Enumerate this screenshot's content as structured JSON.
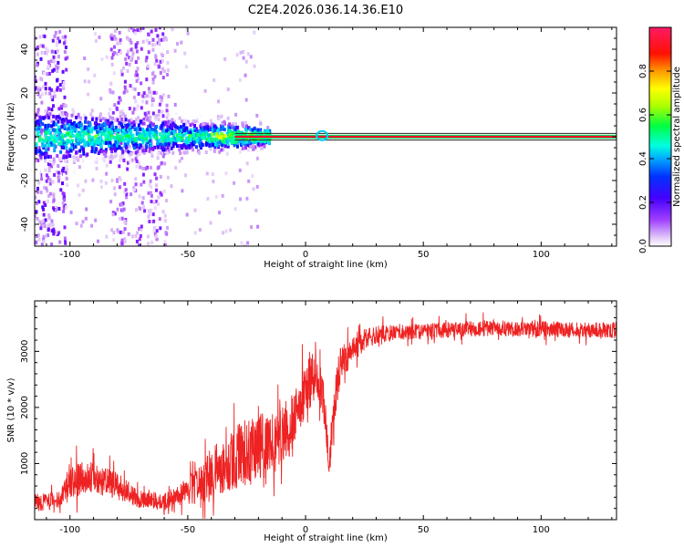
{
  "title": "C2E4.2026.036.14.36.E10",
  "chart_data": [
    {
      "type": "heatmap",
      "xlabel": "Height of straight line (km)",
      "ylabel": "Frequency (Hz)",
      "xlim": [
        -115,
        132
      ],
      "ylim": [
        -50,
        50
      ],
      "xticks": [
        -100,
        -50,
        0,
        50,
        100
      ],
      "yticks": [
        -40,
        -20,
        0,
        20,
        40
      ],
      "xtick_labels": [
        "-100",
        "-50",
        "0",
        "50",
        "100"
      ],
      "ytick_labels": [
        "-40",
        "-20",
        "0",
        "20",
        "40"
      ],
      "colorbar": {
        "label": "Normalized spectral amplitude",
        "range": [
          0.0,
          1.0
        ],
        "ticks": [
          0.0,
          0.2,
          0.4,
          0.6,
          0.8
        ],
        "tick_labels": [
          "0.0",
          "0.2",
          "0.4",
          "0.6",
          "0.8"
        ],
        "colormap": [
          "#ffffff",
          "#d9b8f5",
          "#9b30ff",
          "#5500ff",
          "#0000ff",
          "#00aaff",
          "#00ffe0",
          "#00ff40",
          "#aaff00",
          "#ffff00",
          "#ff9900",
          "#ff0000",
          "#ff1a66"
        ]
      },
      "features": {
        "carrier_line": {
          "x_start": -30,
          "x_end": 132,
          "frequency_hz": 0,
          "amplitude": 0.95
        },
        "carrier_band_edges_hz": [
          -1.5,
          1.5
        ],
        "scatter_strips_km": [
          [
            -115,
            -101
          ],
          [
            -83,
            -70
          ],
          [
            -70,
            -58
          ]
        ]
      }
    },
    {
      "type": "line",
      "xlabel": "Height of straight line (km)",
      "ylabel": "SNR (10 * v/v)",
      "xlim": [
        -115,
        132
      ],
      "ylim": [
        0,
        3900
      ],
      "xticks": [
        -100,
        -50,
        0,
        50,
        100
      ],
      "yticks": [
        1000,
        2000,
        3000
      ],
      "xtick_labels": [
        "-100",
        "-50",
        "0",
        "50",
        "100"
      ],
      "ytick_labels": [
        "1000",
        "2000",
        "3000"
      ],
      "series": [
        {
          "name": "SNR",
          "color": "#ee2222",
          "x": [
            -115,
            -105,
            -100,
            -90,
            -80,
            -70,
            -60,
            -50,
            -40,
            -30,
            -20,
            -15,
            -10,
            -5,
            0,
            5,
            8,
            10,
            12,
            15,
            20,
            25,
            30,
            40,
            50,
            60,
            70,
            80,
            90,
            100,
            110,
            120,
            132
          ],
          "y": [
            300,
            350,
            700,
            750,
            600,
            350,
            320,
            500,
            800,
            1100,
            1300,
            1300,
            1500,
            1800,
            2300,
            2700,
            2000,
            900,
            2000,
            2800,
            3000,
            3200,
            3300,
            3350,
            3350,
            3380,
            3400,
            3420,
            3400,
            3400,
            3380,
            3380,
            3380
          ],
          "spread": [
            200,
            200,
            400,
            350,
            300,
            200,
            200,
            300,
            600,
            700,
            800,
            700,
            700,
            700,
            600,
            600,
            500,
            300,
            500,
            400,
            300,
            250,
            200,
            180,
            180,
            180,
            180,
            180,
            180,
            180,
            180,
            180,
            180
          ]
        }
      ]
    }
  ]
}
